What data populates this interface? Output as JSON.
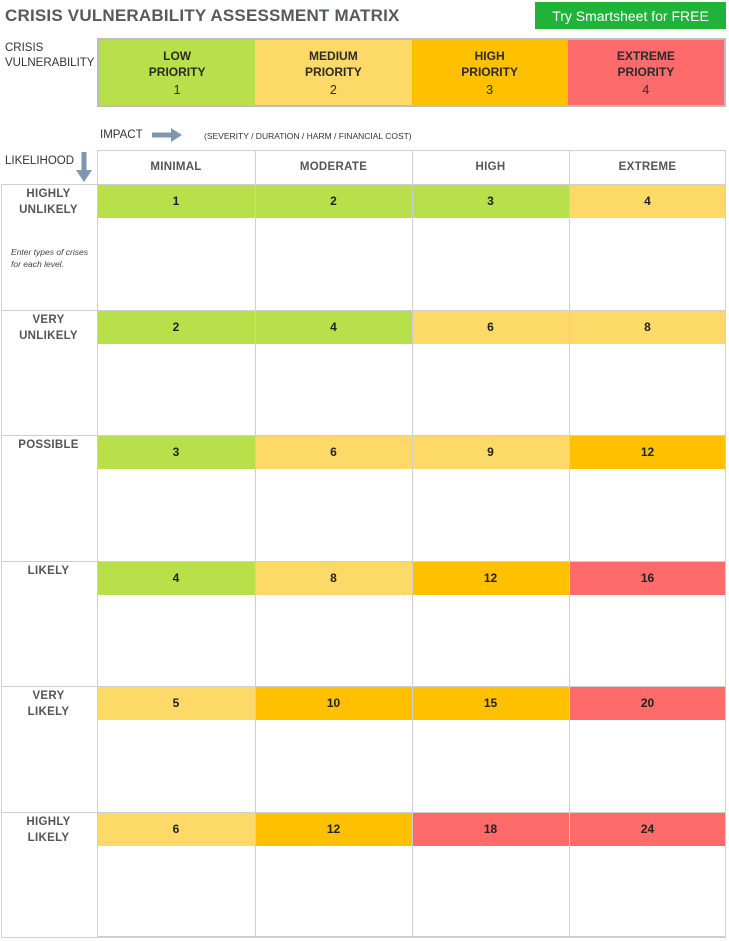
{
  "title": "CRISIS VULNERABILITY ASSESSMENT MATRIX",
  "cta_label": "Try Smartsheet for FREE",
  "colors": {
    "low": "#b8e04a",
    "medium": "#fdd968",
    "high": "#ffc000",
    "extreme": "#ff6a6a",
    "cta": "#1fb33a"
  },
  "vulnerability": {
    "label_line1": "CRISIS",
    "label_line2": "VULNERABILITY",
    "levels": [
      {
        "line1": "LOW",
        "line2": "PRIORITY",
        "num": "1",
        "level": "low"
      },
      {
        "line1": "MEDIUM",
        "line2": "PRIORITY",
        "num": "2",
        "level": "medium"
      },
      {
        "line1": "HIGH",
        "line2": "PRIORITY",
        "num": "3",
        "level": "high"
      },
      {
        "line1": "EXTREME",
        "line2": "PRIORITY",
        "num": "4",
        "level": "extreme"
      }
    ]
  },
  "impact": {
    "label": "IMPACT",
    "description": "(SEVERITY / DURATION / HARM / FINANCIAL COST)",
    "columns": [
      "MINIMAL",
      "MODERATE",
      "HIGH",
      "EXTREME"
    ]
  },
  "likelihood": {
    "label": "LIKELIHOOD",
    "note": "Enter types of crises for each level.",
    "rows": [
      {
        "line1": "HIGHLY",
        "line2": "UNLIKELY",
        "scores": [
          "1",
          "2",
          "3",
          "4"
        ],
        "levels": [
          "low",
          "low",
          "low",
          "medium"
        ]
      },
      {
        "line1": "VERY",
        "line2": "UNLIKELY",
        "scores": [
          "2",
          "4",
          "6",
          "8"
        ],
        "levels": [
          "low",
          "low",
          "medium",
          "medium"
        ]
      },
      {
        "line1": "POSSIBLE",
        "line2": "",
        "scores": [
          "3",
          "6",
          "9",
          "12"
        ],
        "levels": [
          "low",
          "medium",
          "medium",
          "high"
        ]
      },
      {
        "line1": "LIKELY",
        "line2": "",
        "scores": [
          "4",
          "8",
          "12",
          "16"
        ],
        "levels": [
          "low",
          "medium",
          "high",
          "extreme"
        ]
      },
      {
        "line1": "VERY",
        "line2": "LIKELY",
        "scores": [
          "5",
          "10",
          "15",
          "20"
        ],
        "levels": [
          "medium",
          "high",
          "high",
          "extreme"
        ]
      },
      {
        "line1": "HIGHLY",
        "line2": "LIKELY",
        "scores": [
          "6",
          "12",
          "18",
          "24"
        ],
        "levels": [
          "medium",
          "high",
          "extreme",
          "extreme"
        ]
      }
    ]
  }
}
